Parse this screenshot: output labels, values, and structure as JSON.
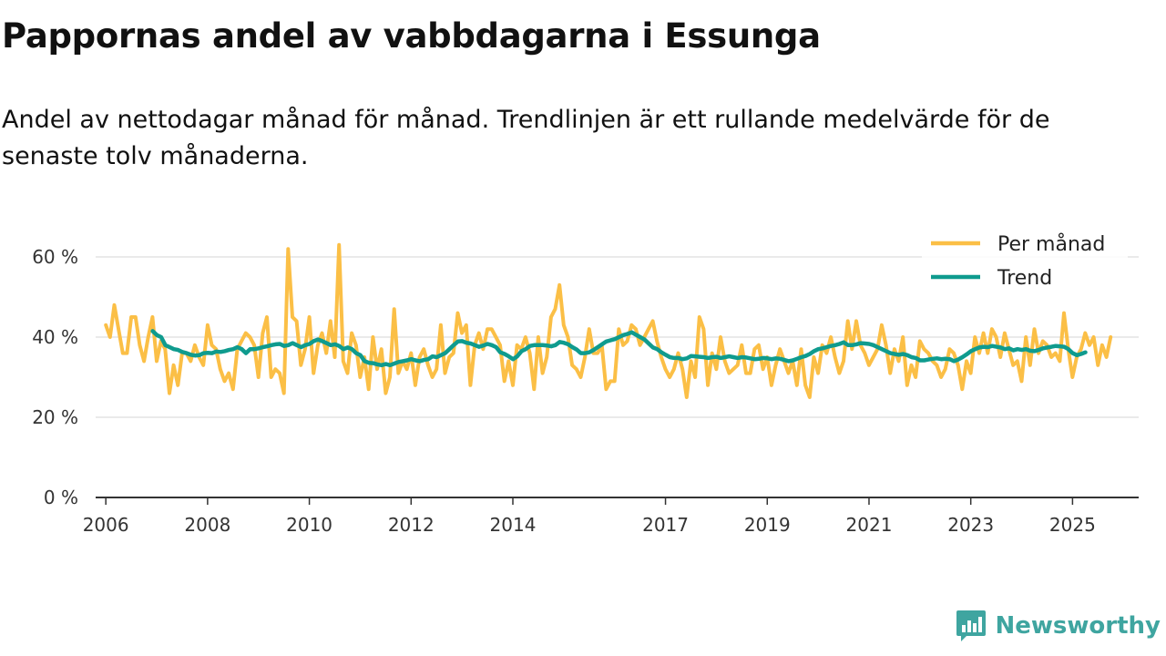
{
  "title": "Pappornas andel av vabbdagarna i Essunga",
  "subtitle": "Andel av nettodagar månad för månad. Trendlinjen är ett rullande medelvärde för de senaste tolv månaderna.",
  "brand": {
    "name": "Newsworthy",
    "icon": "newsworthy-logo-icon"
  },
  "colors": {
    "monthly": "#fbbf46",
    "trend": "#0f9b8e",
    "grid": "#dddddd",
    "axis": "#333333",
    "text": "#333333",
    "brand": "#3fa5a0"
  },
  "chart_data": {
    "type": "line",
    "title": "Pappornas andel av vabbdagarna i Essunga",
    "xlabel": "",
    "ylabel": "",
    "xlim": [
      2005.8,
      2026.3
    ],
    "ylim": [
      0,
      70
    ],
    "y_ticks": [
      0,
      20,
      40,
      60
    ],
    "y_tick_labels": [
      "0 %",
      "20 %",
      "40 %",
      "60 %"
    ],
    "x_ticks": [
      2006,
      2008,
      2010,
      2012,
      2014,
      2017,
      2019,
      2021,
      2023,
      2025
    ],
    "x_tick_labels": [
      "2006",
      "2008",
      "2010",
      "2012",
      "2014",
      "2017",
      "2019",
      "2021",
      "2023",
      "2025"
    ],
    "legend": {
      "position": "top-right",
      "entries": [
        "Per månad",
        "Trend"
      ]
    },
    "series": [
      {
        "name": "Per månad",
        "x_start": 2006.0,
        "x_step": 0.08333,
        "values": [
          43,
          40,
          48,
          42,
          36,
          36,
          45,
          45,
          38,
          34,
          40,
          45,
          34,
          39,
          37,
          26,
          33,
          28,
          36,
          36,
          34,
          38,
          35,
          33,
          43,
          38,
          37,
          32,
          29,
          31,
          27,
          37,
          39,
          41,
          40,
          38,
          30,
          41,
          45,
          30,
          32,
          31,
          26,
          62,
          45,
          44,
          33,
          37,
          45,
          31,
          38,
          41,
          36,
          44,
          35,
          63,
          34,
          31,
          41,
          38,
          30,
          35,
          27,
          40,
          32,
          37,
          26,
          30,
          47,
          31,
          34,
          32,
          36,
          28,
          35,
          37,
          33,
          30,
          32,
          43,
          31,
          35,
          36,
          46,
          41,
          43,
          28,
          38,
          41,
          37,
          42,
          42,
          40,
          38,
          29,
          34,
          28,
          38,
          37,
          40,
          36,
          27,
          40,
          31,
          35,
          45,
          47,
          53,
          43,
          40,
          33,
          32,
          30,
          35,
          42,
          36,
          36,
          38,
          27,
          29,
          29,
          42,
          38,
          39,
          43,
          42,
          38,
          40,
          42,
          44,
          39,
          35,
          32,
          30,
          32,
          36,
          32,
          25,
          34,
          30,
          45,
          42,
          28,
          36,
          32,
          40,
          34,
          31,
          32,
          33,
          38,
          31,
          31,
          37,
          38,
          32,
          35,
          28,
          33,
          37,
          34,
          31,
          34,
          28,
          37,
          28,
          25,
          35,
          31,
          38,
          36,
          40,
          35,
          31,
          34,
          44,
          37,
          44,
          38,
          36,
          33,
          35,
          37,
          43,
          38,
          31,
          37,
          34,
          40,
          28,
          33,
          30,
          39,
          37,
          36,
          34,
          33,
          30,
          32,
          37,
          36,
          33,
          27,
          34,
          31,
          40,
          36,
          41,
          36,
          42,
          40,
          35,
          41,
          37,
          33,
          34,
          29,
          40,
          33,
          42,
          36,
          39,
          38,
          35,
          36,
          34,
          46,
          37,
          30,
          35,
          37,
          41,
          38,
          40,
          33,
          38,
          35,
          40
        ],
        "color": "#fbbf46"
      },
      {
        "name": "Trend",
        "x_start": 2006.92,
        "x_step": 0.08333,
        "values": [
          41.5,
          40.5,
          40,
          38,
          37.5,
          37,
          36.8,
          36.3,
          36,
          35.6,
          35.4,
          35.5,
          36,
          36.1,
          36,
          36.4,
          36.3,
          36.5,
          36.8,
          37,
          37.5,
          37,
          36,
          37,
          37,
          37.2,
          37.5,
          37.7,
          38,
          38.2,
          38.3,
          37.8,
          38,
          38.5,
          38,
          37.5,
          38,
          38.3,
          39,
          39.4,
          39,
          38.5,
          38,
          38.2,
          37.8,
          37,
          37.4,
          37,
          36,
          35.5,
          34,
          33.6,
          33.5,
          33.2,
          33,
          33.3,
          33,
          33.4,
          33.8,
          34,
          34.2,
          34.5,
          34.2,
          34,
          34.3,
          34.5,
          35.2,
          35,
          35.5,
          36,
          37,
          38,
          38.9,
          39,
          38.6,
          38.4,
          38,
          37.6,
          37.9,
          38.3,
          38,
          37.5,
          36.2,
          35.8,
          35.2,
          34.5,
          35.2,
          36.5,
          37,
          37.8,
          38,
          38,
          38,
          37.9,
          37.7,
          38,
          38.8,
          38.6,
          38.2,
          37.5,
          36.9,
          36,
          36,
          36.2,
          36.8,
          37.5,
          38.2,
          38.9,
          39.2,
          39.5,
          40,
          40.5,
          40.8,
          41.2,
          40.6,
          40,
          39.4,
          38.4,
          37.4,
          37,
          36.2,
          35.6,
          35,
          34.8,
          34.8,
          34.5,
          34.7,
          35.3,
          35.2,
          35.1,
          35,
          34.8,
          35,
          35.1,
          34.8,
          35,
          35.2,
          35,
          34.8,
          35,
          34.9,
          34.7,
          34.5,
          34.6,
          34.8,
          34.7,
          34.5,
          34.7,
          34.6,
          34.3,
          34,
          34.2,
          34.6,
          35,
          35.3,
          35.8,
          36.5,
          37,
          37.2,
          37.5,
          37.8,
          38,
          38.3,
          38.7,
          38,
          38,
          38.2,
          38.5,
          38.4,
          38.3,
          38,
          37.5,
          37,
          36.5,
          36,
          35.8,
          35.6,
          35.8,
          35.5,
          35,
          34.8,
          34.2,
          34.2,
          34.4,
          34.6,
          34.7,
          34.5,
          34.6,
          34.5,
          34,
          34.4,
          35,
          35.7,
          36.5,
          37,
          37.4,
          37.6,
          37.5,
          37.8,
          37.6,
          37.4,
          37,
          37.2,
          36.7,
          37,
          36.8,
          37,
          36.6,
          36.5,
          36.8,
          37.2,
          37.4,
          37.6,
          37.8,
          37.7,
          37.6,
          37,
          36,
          35.5,
          35.8,
          36.2
        ],
        "color": "#0f9b8e"
      }
    ]
  }
}
